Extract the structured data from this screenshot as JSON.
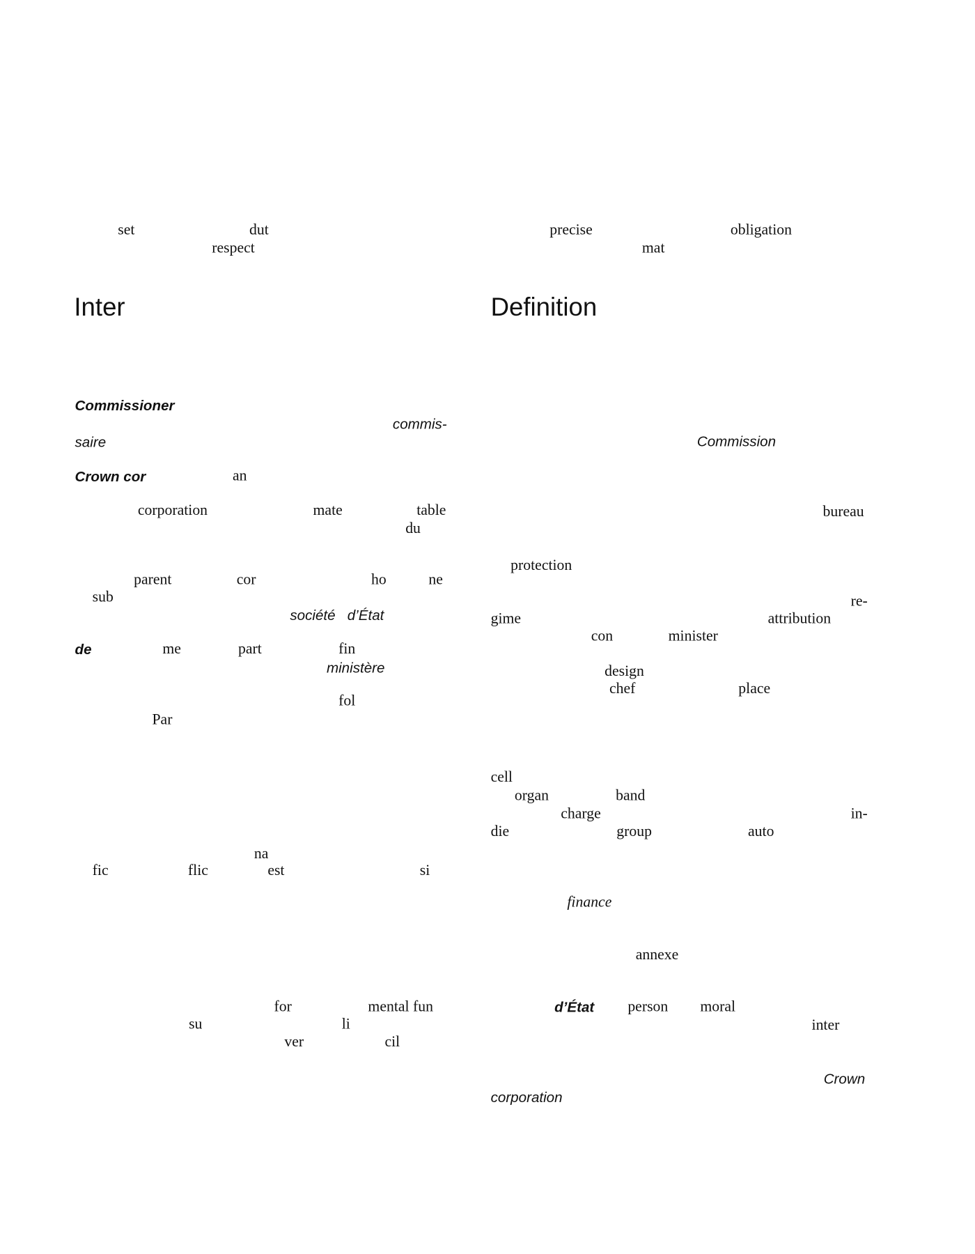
{
  "headings": {
    "left": "Inter",
    "right": "Definition"
  },
  "words": [
    "set",
    "dut",
    "respect",
    "precise",
    "obligation",
    "mat",
    "Commissioner",
    "commis-",
    "saire",
    "Commission",
    "Crown cor",
    "an",
    "corporation",
    "mate",
    "table",
    "du",
    "bureau",
    "protection",
    "parent",
    "cor",
    "ho",
    "ne",
    "sub",
    "re-",
    "société   d’État",
    "gime",
    "attribution",
    "con",
    "minister",
    "de",
    "me",
    "part",
    "fin",
    "ministère",
    "design",
    "chef",
    "place",
    "fol",
    "Par",
    "cell",
    "organ",
    "band",
    "charge",
    "in-",
    "die",
    "group",
    "auto",
    "na",
    "fic",
    "flic",
    "est",
    "si",
    "finance",
    "annexe",
    "for",
    "mental fun",
    "d’État",
    "person",
    "moral",
    "su",
    "li",
    "inter",
    "ver",
    "cil",
    "Crown",
    "corporation"
  ]
}
